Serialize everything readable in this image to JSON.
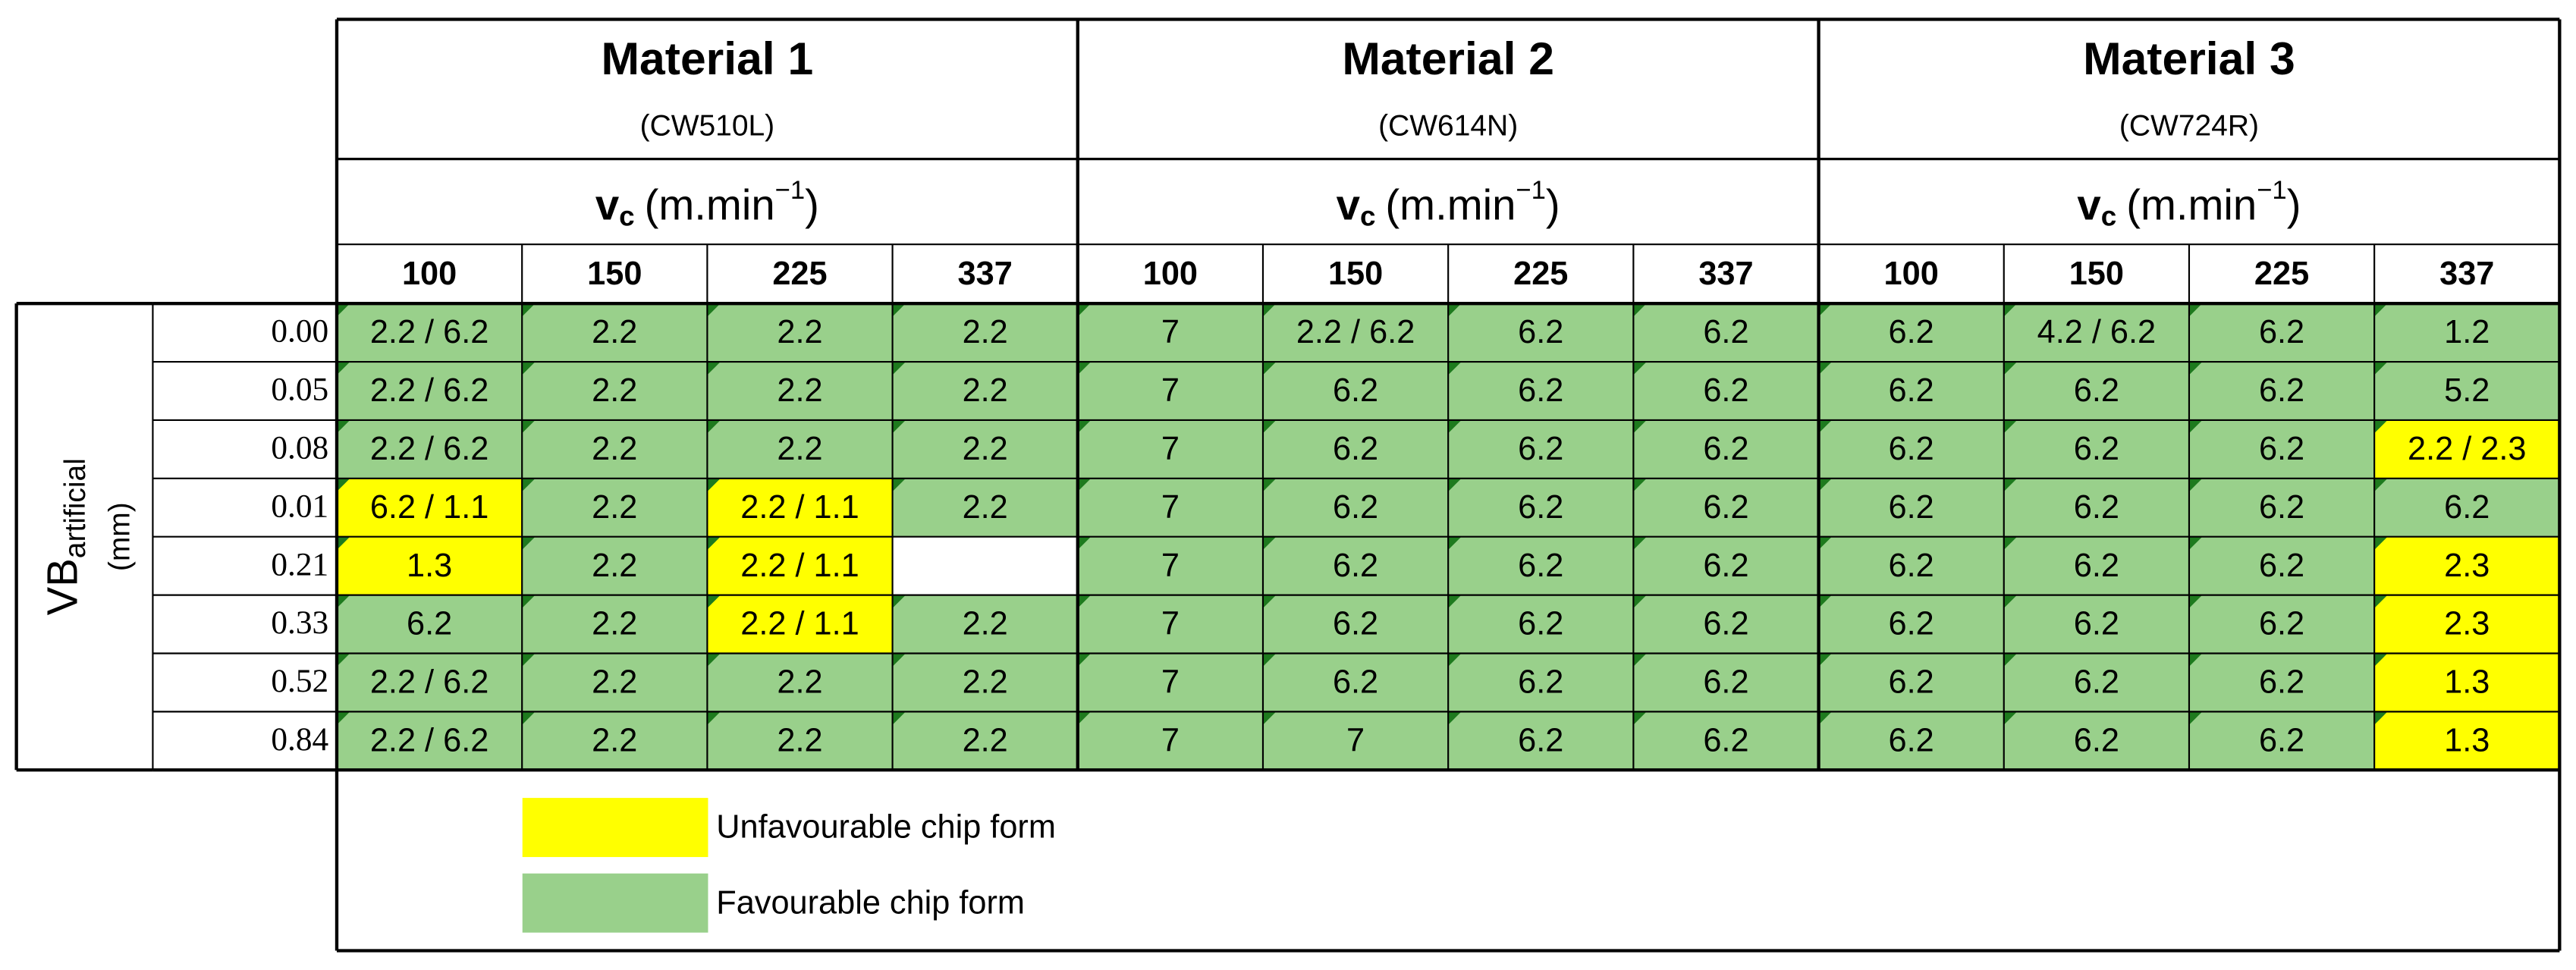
{
  "materials": [
    {
      "name": "Material 1",
      "code": "(CW510L)",
      "speeds": [
        100,
        150,
        225,
        337
      ]
    },
    {
      "name": "Material 2",
      "code": "(CW614N)",
      "speeds": [
        100,
        150,
        225,
        337
      ]
    },
    {
      "name": "Material 3",
      "code": "(CW724R)",
      "speeds": [
        100,
        150,
        225,
        337
      ]
    }
  ],
  "speed_label": {
    "symbol": "v",
    "subscript": "c",
    "unit": "(m.min",
    "superscript": "−1",
    "close": ")"
  },
  "row_label": {
    "symbol": "VB",
    "subscript": "artificial",
    "unit": "(mm)"
  },
  "rows": [
    {
      "vb": "0.00",
      "cells": [
        "2.2 / 6.2",
        "2.2",
        "2.2",
        "2.2",
        "7",
        "2.2 / 6.2",
        "6.2",
        "6.2",
        "6.2",
        "4.2 / 6.2",
        "6.2",
        "1.2"
      ],
      "status": [
        "F",
        "F",
        "F",
        "F",
        "F",
        "F",
        "F",
        "F",
        "F",
        "F",
        "F",
        "F"
      ]
    },
    {
      "vb": "0.05",
      "cells": [
        "2.2 / 6.2",
        "2.2",
        "2.2",
        "2.2",
        "7",
        "6.2",
        "6.2",
        "6.2",
        "6.2",
        "6.2",
        "6.2",
        "5.2"
      ],
      "status": [
        "F",
        "F",
        "F",
        "F",
        "F",
        "F",
        "F",
        "F",
        "F",
        "F",
        "F",
        "F"
      ]
    },
    {
      "vb": "0.08",
      "cells": [
        "2.2 / 6.2",
        "2.2",
        "2.2",
        "2.2",
        "7",
        "6.2",
        "6.2",
        "6.2",
        "6.2",
        "6.2",
        "6.2",
        "2.2 / 2.3"
      ],
      "status": [
        "F",
        "F",
        "F",
        "F",
        "F",
        "F",
        "F",
        "F",
        "F",
        "F",
        "F",
        "U"
      ]
    },
    {
      "vb": "0.01",
      "cells": [
        "6.2 / 1.1",
        "2.2",
        "2.2 / 1.1",
        "2.2",
        "7",
        "6.2",
        "6.2",
        "6.2",
        "6.2",
        "6.2",
        "6.2",
        "6.2"
      ],
      "status": [
        "U",
        "F",
        "U",
        "F",
        "F",
        "F",
        "F",
        "F",
        "F",
        "F",
        "F",
        "F"
      ]
    },
    {
      "vb": "0.21",
      "cells": [
        "1.3",
        "2.2",
        "2.2 / 1.1",
        null,
        "7",
        "6.2",
        "6.2",
        "6.2",
        "6.2",
        "6.2",
        "6.2",
        "2.3"
      ],
      "status": [
        "U",
        "F",
        "U",
        null,
        "F",
        "F",
        "F",
        "F",
        "F",
        "F",
        "F",
        "U"
      ]
    },
    {
      "vb": "0.33",
      "cells": [
        "6.2",
        "2.2",
        "2.2 / 1.1",
        "2.2",
        "7",
        "6.2",
        "6.2",
        "6.2",
        "6.2",
        "6.2",
        "6.2",
        "2.3"
      ],
      "status": [
        "F",
        "F",
        "U",
        "F",
        "F",
        "F",
        "F",
        "F",
        "F",
        "F",
        "F",
        "U"
      ]
    },
    {
      "vb": "0.52",
      "cells": [
        "2.2 / 6.2",
        "2.2",
        "2.2",
        "2.2",
        "7",
        "6.2",
        "6.2",
        "6.2",
        "6.2",
        "6.2",
        "6.2",
        "1.3"
      ],
      "status": [
        "F",
        "F",
        "F",
        "F",
        "F",
        "F",
        "F",
        "F",
        "F",
        "F",
        "F",
        "U"
      ]
    },
    {
      "vb": "0.84",
      "cells": [
        "2.2 / 6.2",
        "2.2",
        "2.2",
        "2.2",
        "7",
        "7",
        "6.2",
        "6.2",
        "6.2",
        "6.2",
        "6.2",
        "1.3"
      ],
      "status": [
        "F",
        "F",
        "F",
        "F",
        "F",
        "F",
        "F",
        "F",
        "F",
        "F",
        "F",
        "U"
      ]
    }
  ],
  "legend": [
    {
      "status": "U",
      "color": "#ffff00",
      "label": "Unfavourable chip form"
    },
    {
      "status": "F",
      "color": "#99d08b",
      "label": "Favourable chip form"
    }
  ]
}
